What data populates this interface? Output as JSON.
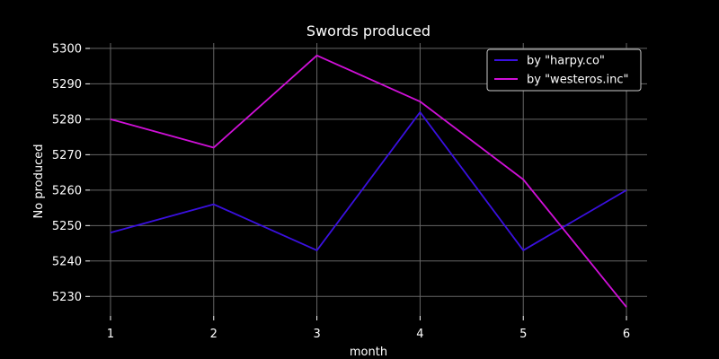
{
  "chart_data": {
    "type": "line",
    "title": "Swords produced",
    "xlabel": "month",
    "ylabel": "No produced",
    "x": [
      1,
      2,
      3,
      4,
      5,
      6
    ],
    "xlim": [
      0.8,
      6.2
    ],
    "ylim": [
      5224.5,
      5301.5
    ],
    "yticks": [
      5230,
      5240,
      5250,
      5260,
      5270,
      5280,
      5290,
      5300
    ],
    "grid": true,
    "legend_position": "top-right",
    "background": "#000000",
    "series": [
      {
        "name": "by \"harpy.co\"",
        "color": "#3a10e0",
        "values": [
          5248,
          5256,
          5243,
          5282,
          5243,
          5260
        ]
      },
      {
        "name": "by \"westeros.inc\"",
        "color": "#d010d8",
        "values": [
          5280,
          5272,
          5298,
          5285,
          5263,
          5227
        ]
      }
    ]
  }
}
